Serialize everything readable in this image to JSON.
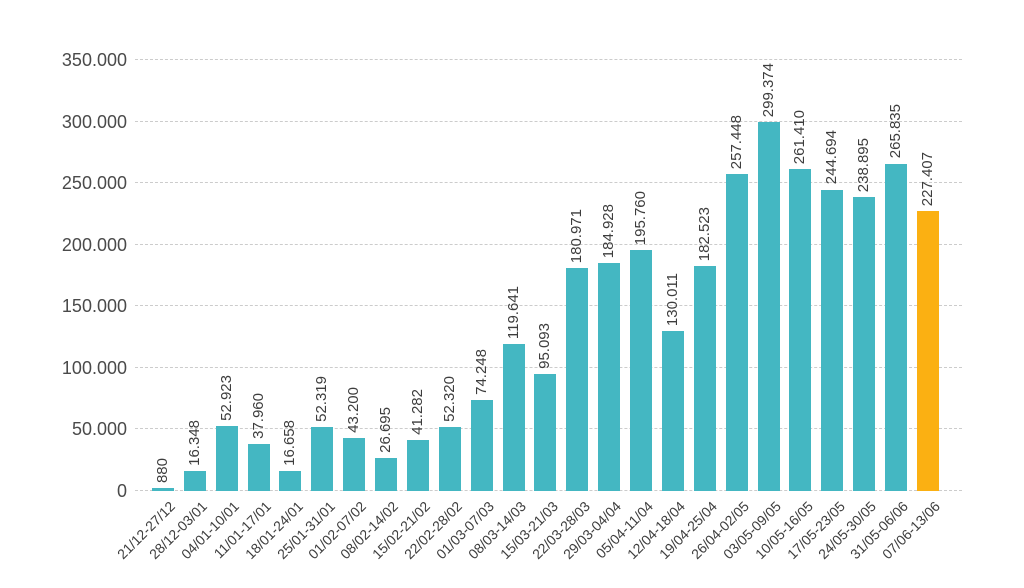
{
  "chart_data": {
    "type": "bar",
    "title": "",
    "xlabel": "",
    "ylabel": "",
    "ylim": [
      0,
      350000
    ],
    "grid": "horizontal-dashed",
    "legend": "none",
    "bar_color": "#44b7c2",
    "highlight_color": "#fbb012",
    "highlight_index": 24,
    "yticks": [
      "0",
      "50.000",
      "100.000",
      "150.000",
      "200.000",
      "250.000",
      "300.000",
      "350.000"
    ],
    "categories": [
      "21/12-27/12",
      "28/12-03/01",
      "04/01-10/01",
      "11/01-17/01",
      "18/01-24/01",
      "25/01-31/01",
      "01/02-07/02",
      "08/02-14/02",
      "15/02-21/02",
      "22/02-28/02",
      "01/03-07/03",
      "08/03-14/03",
      "15/03-21/03",
      "22/03-28/03",
      "29/03-04/04",
      "05/04-11/04",
      "12/04-18/04",
      "19/04-25/04",
      "26/04-02/05",
      "03/05-09/05",
      "10/05-16/05",
      "17/05-23/05",
      "24/05-30/05",
      "31/05-06/06",
      "07/06-13/06"
    ],
    "values": [
      880,
      16348,
      52923,
      37960,
      16658,
      52319,
      43200,
      26695,
      41282,
      52320,
      74248,
      119641,
      95093,
      180971,
      184928,
      195760,
      130011,
      182523,
      257448,
      299374,
      261410,
      244694,
      238895,
      265835,
      227407
    ],
    "value_labels": [
      "880",
      "16.348",
      "52.923",
      "37.960",
      "16.658",
      "52.319",
      "43.200",
      "26.695",
      "41.282",
      "52.320",
      "74.248",
      "119.641",
      "95.093",
      "180.971",
      "184.928",
      "195.760",
      "130.011",
      "182.523",
      "257.448",
      "299.374",
      "261.410",
      "244.694",
      "238.895",
      "265.835",
      "227.407"
    ]
  }
}
